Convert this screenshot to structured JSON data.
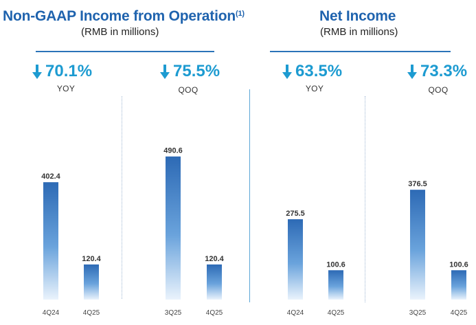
{
  "panels": [
    {
      "title": "Non-GAAP Income from Operation",
      "footnote": "(1)",
      "subtitle": "(RMB in millions)",
      "yoy": {
        "value": "70.1%",
        "label": "YOY"
      },
      "qoq": {
        "value": "75.5%",
        "label": "QOQ"
      }
    },
    {
      "title": "Net Income",
      "subtitle": "(RMB in millions)",
      "yoy": {
        "value": "63.5%",
        "label": "YOY"
      },
      "qoq": {
        "value": "73.3%",
        "label": "QOQ"
      }
    }
  ],
  "colors": {
    "title": "#1f63ae",
    "percent": "#1d9bd1",
    "bar_top": "#2d6ab5",
    "bar_bottom": "#eaf3fc"
  },
  "chart_data": [
    {
      "type": "bar",
      "title": "Non-GAAP Income from Operation - YOY",
      "categories": [
        "4Q24",
        "4Q25"
      ],
      "values": [
        402.4,
        120.4
      ],
      "ylabel": "RMB in millions",
      "ylim": [
        0,
        540
      ]
    },
    {
      "type": "bar",
      "title": "Non-GAAP Income from Operation - QOQ",
      "categories": [
        "3Q25",
        "4Q25"
      ],
      "values": [
        490.6,
        120.4
      ],
      "ylabel": "RMB in millions",
      "ylim": [
        0,
        540
      ]
    },
    {
      "type": "bar",
      "title": "Net Income - YOY",
      "categories": [
        "4Q24",
        "4Q25"
      ],
      "values": [
        275.5,
        100.6
      ],
      "ylabel": "RMB in millions",
      "ylim": [
        0,
        540
      ]
    },
    {
      "type": "bar",
      "title": "Net Income - QOQ",
      "categories": [
        "3Q25",
        "4Q25"
      ],
      "values": [
        376.5,
        100.6
      ],
      "ylabel": "RMB in millions",
      "ylim": [
        0,
        540
      ]
    }
  ]
}
